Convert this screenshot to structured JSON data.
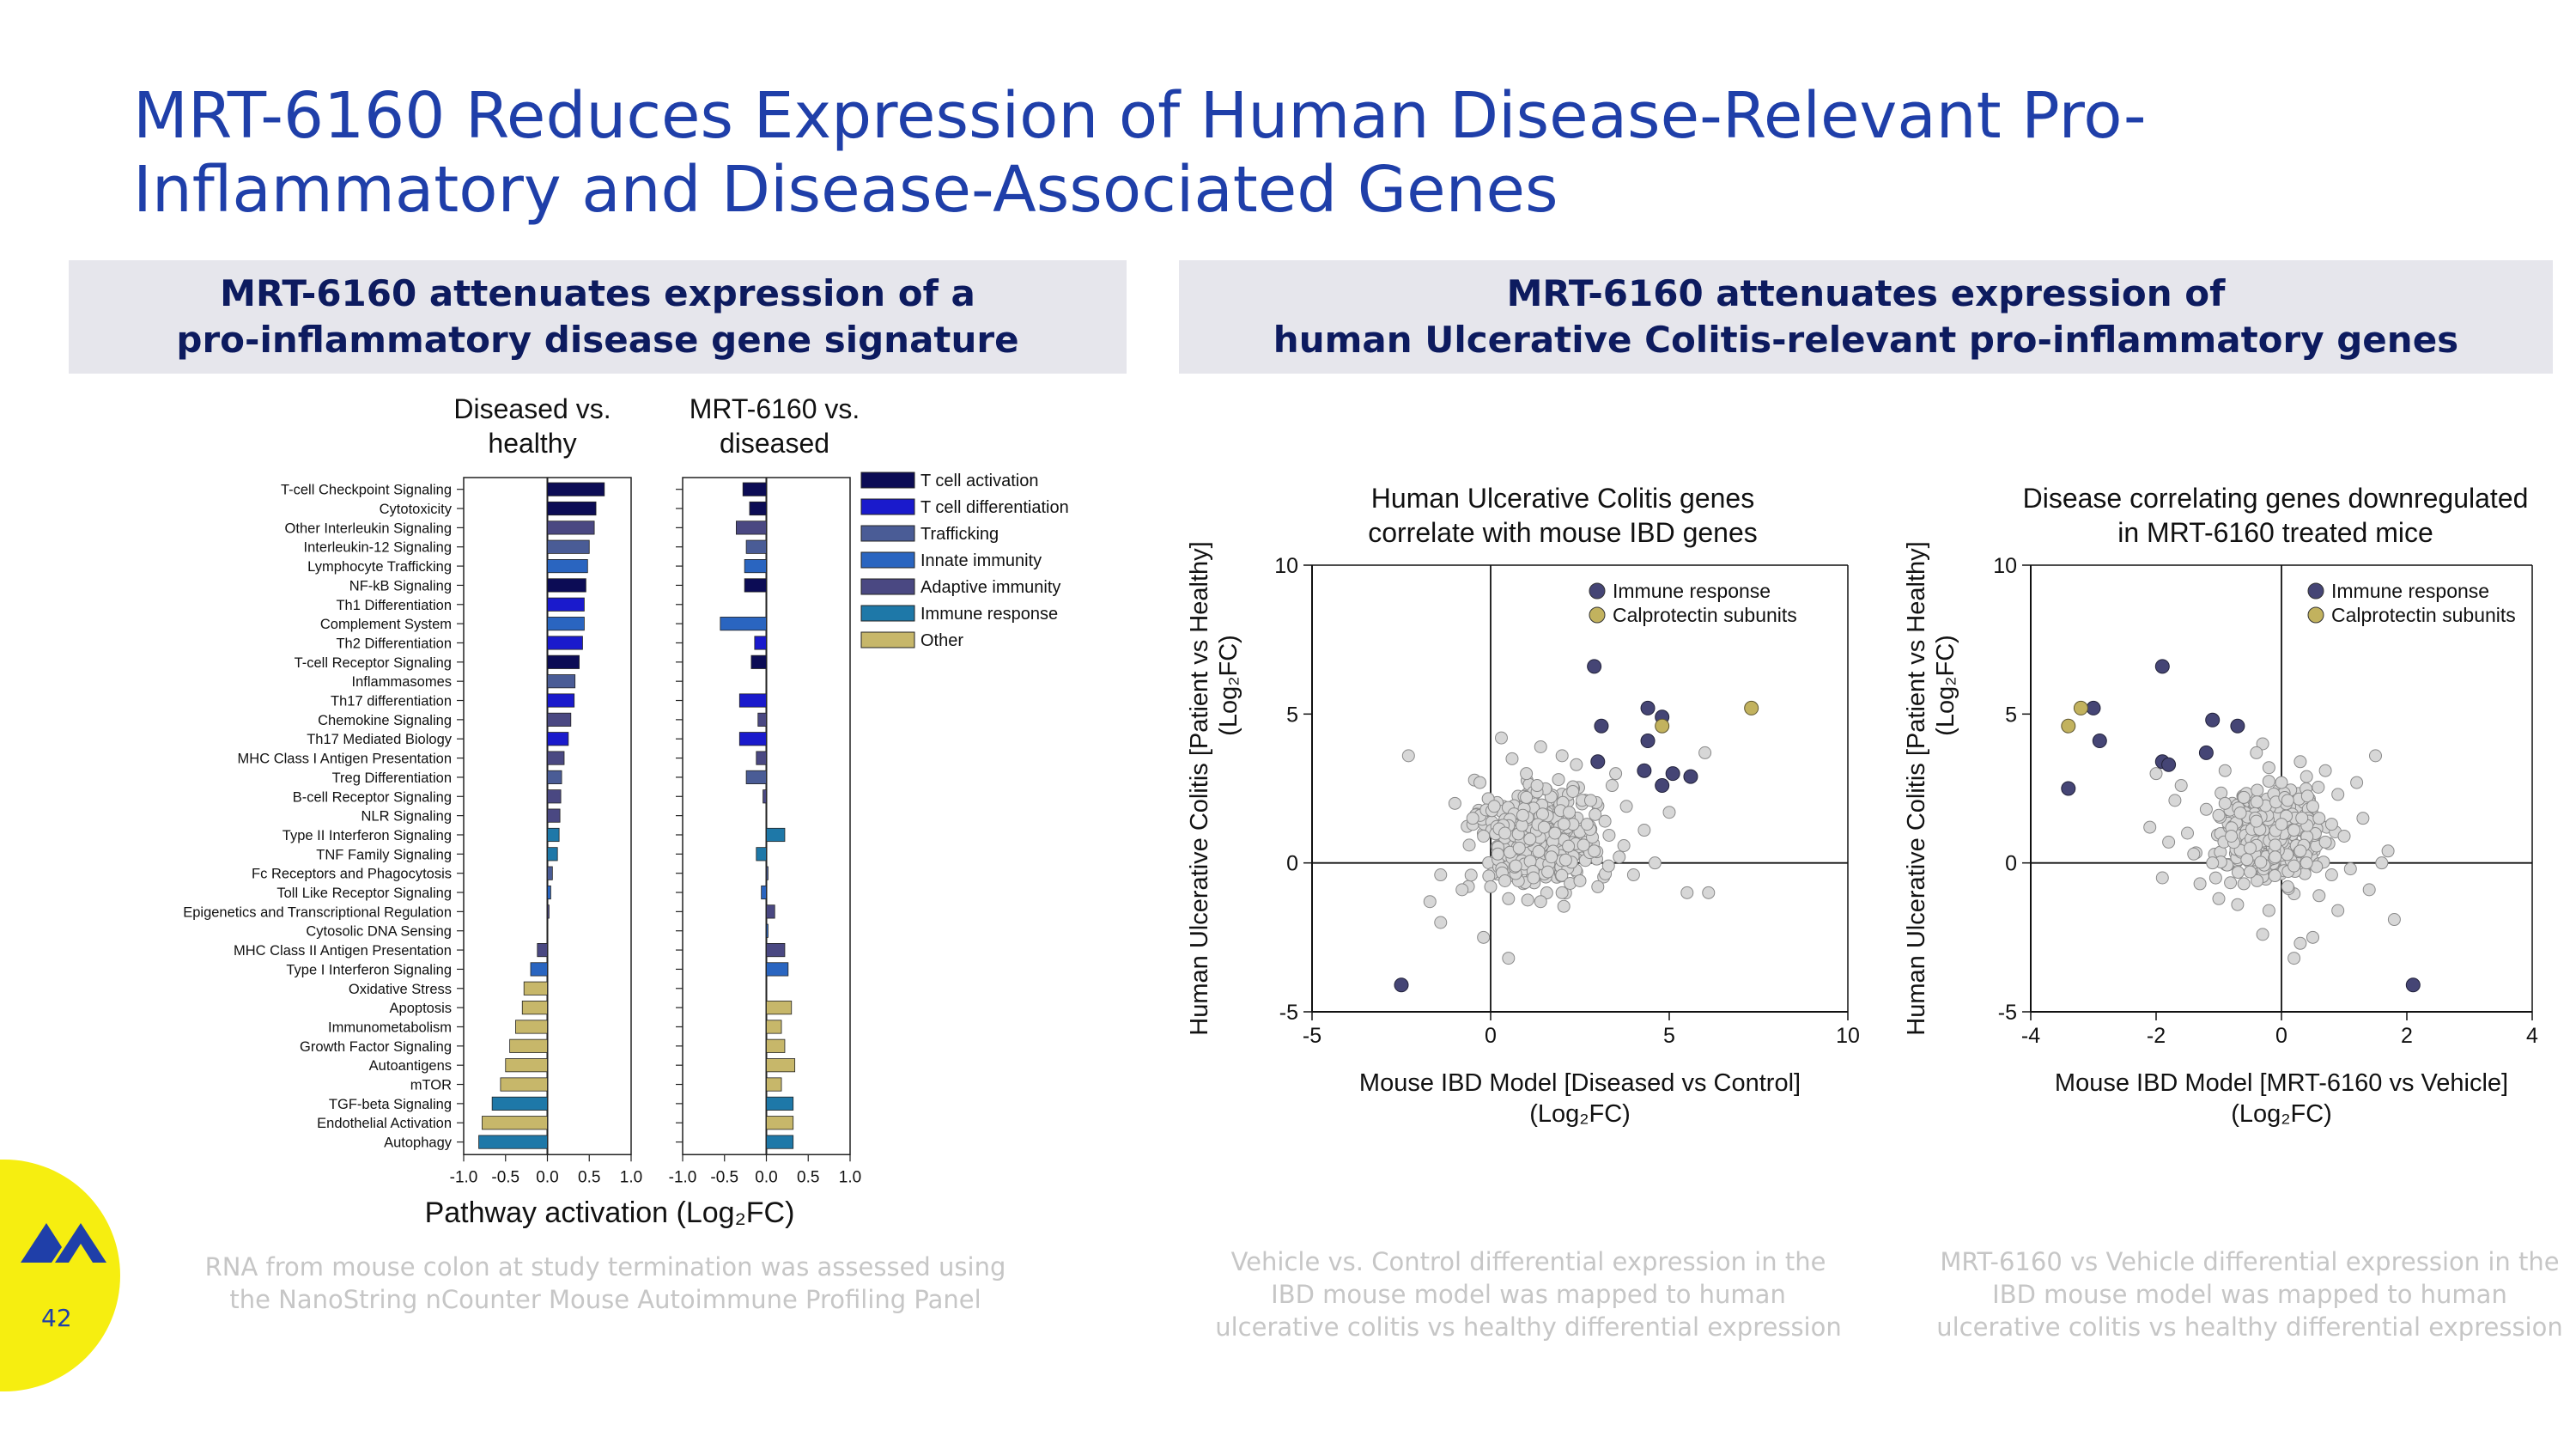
{
  "slide": {
    "title": "MRT-6160 Reduces Expression of Human Disease-Relevant Pro-Inflammatory and Disease-Associated Genes",
    "page_number": "42",
    "left_banner": [
      "MRT-6160 attenuates expression of a",
      "pro-inflammatory disease gene signature"
    ],
    "right_banner": [
      "MRT-6160 attenuates expression of",
      "human Ulcerative Colitis-relevant pro-inflammatory genes"
    ],
    "col_header_1": [
      "Diseased vs.",
      "healthy"
    ],
    "col_header_2": [
      "MRT-6160 vs.",
      "diseased"
    ],
    "bar_xlabel": "Pathway activation (Log₂FC)",
    "caption_left": [
      "RNA from mouse colon at study termination was assessed using",
      "the NanoString nCounter Mouse Autoimmune Profiling Panel"
    ],
    "caption_mid": [
      "Vehicle vs. Control differential expression in the",
      "IBD mouse model was mapped to human",
      "ulcerative colitis vs healthy differential expression"
    ],
    "caption_right": [
      "MRT-6160 vs Vehicle differential expression in the",
      "IBD mouse model was mapped to human",
      "ulcerative colitis vs healthy differential expression"
    ]
  },
  "chart_data": [
    {
      "type": "bar",
      "orientation": "horizontal",
      "panels": [
        "Diseased vs. healthy",
        "MRT-6160 vs. diseased"
      ],
      "categories": [
        "T-cell Checkpoint Signaling",
        "Cytotoxicity",
        "Other Interleukin Signaling",
        "Interleukin-12 Signaling",
        "Lymphocyte Trafficking",
        "NF-kB Signaling",
        "Th1 Differentiation",
        "Complement System",
        "Th2 Differentiation",
        "T-cell Receptor Signaling",
        "Inflammasomes",
        "Th17 differentiation",
        "Chemokine Signaling",
        "Th17 Mediated Biology",
        "MHC Class I Antigen Presentation",
        "Treg Differentiation",
        "B-cell Receptor Signaling",
        "NLR Signaling",
        "Type II Interferon Signaling",
        "TNF Family Signaling",
        "Fc Receptors and Phagocytosis",
        "Toll Like Receptor Signaling",
        "Epigenetics and Transcriptional Regulation",
        "Cytosolic DNA Sensing",
        "MHC Class II Antigen Presentation",
        "Type I Interferon Signaling",
        "Oxidative Stress",
        "Apoptosis",
        "Immunometabolism",
        "Growth Factor Signaling",
        "Autoantigens",
        "mTOR",
        "TGF-beta Signaling",
        "Endothelial Activation",
        "Autophagy"
      ],
      "groups": [
        "T cell activation",
        "T cell activation",
        "Adaptive immunity",
        "Trafficking",
        "Innate immunity",
        "T cell activation",
        "T cell differentiation",
        "Innate immunity",
        "T cell differentiation",
        "T cell activation",
        "Trafficking",
        "T cell differentiation",
        "Adaptive immunity",
        "T cell differentiation",
        "Adaptive immunity",
        "Trafficking",
        "Adaptive immunity",
        "Adaptive immunity",
        "Immune response",
        "Immune response",
        "Trafficking",
        "Innate immunity",
        "Adaptive immunity",
        "Innate immunity",
        "Adaptive immunity",
        "Innate immunity",
        "Other",
        "Other",
        "Other",
        "Other",
        "Other",
        "Other",
        "Immune response",
        "Other",
        "Immune response"
      ],
      "series": [
        {
          "name": "Diseased vs. healthy",
          "values": [
            0.68,
            0.58,
            0.56,
            0.5,
            0.48,
            0.46,
            0.44,
            0.44,
            0.42,
            0.38,
            0.33,
            0.32,
            0.28,
            0.25,
            0.2,
            0.17,
            0.16,
            0.15,
            0.14,
            0.12,
            0.06,
            0.04,
            0.02,
            0.0,
            -0.12,
            -0.2,
            -0.28,
            -0.3,
            -0.38,
            -0.45,
            -0.5,
            -0.56,
            -0.66,
            -0.78,
            -0.82
          ]
        },
        {
          "name": "MRT-6160 vs. diseased",
          "values": [
            -0.28,
            -0.2,
            -0.36,
            -0.24,
            -0.26,
            -0.26,
            0.0,
            -0.55,
            -0.14,
            -0.18,
            0.0,
            -0.32,
            -0.1,
            -0.32,
            -0.12,
            -0.24,
            -0.04,
            0.0,
            0.22,
            -0.12,
            0.02,
            -0.06,
            0.1,
            0.02,
            0.22,
            0.26,
            0.0,
            0.3,
            0.18,
            0.22,
            0.34,
            0.18,
            0.32,
            0.32,
            0.32
          ]
        }
      ],
      "xlim": [
        -1.0,
        1.0
      ],
      "xticks": [
        "-1.0",
        "-0.5",
        "0.0",
        "0.5",
        "1.0"
      ],
      "xlabel": "Pathway activation (Log₂FC)",
      "legend": [
        {
          "name": "T cell activation",
          "color": "#0c0c55"
        },
        {
          "name": "T cell differentiation",
          "color": "#1a1acc"
        },
        {
          "name": "Trafficking",
          "color": "#4a5c96"
        },
        {
          "name": "Innate immunity",
          "color": "#2a65c0"
        },
        {
          "name": "Adaptive immunity",
          "color": "#4a4882"
        },
        {
          "name": "Immune response",
          "color": "#1e78a8"
        },
        {
          "name": "Other",
          "color": "#c7b76a"
        }
      ],
      "legend_position": "top-right"
    },
    {
      "type": "scatter",
      "title": "Human Ulcerative Colitis genes correlate with mouse IBD genes",
      "title_lines": [
        "Human Ulcerative Colitis genes",
        "correlate with mouse IBD genes"
      ],
      "xlabel_lines": [
        "Mouse IBD Model [Diseased vs Control]",
        "(Log₂FC)"
      ],
      "ylabel_lines": [
        "Human Ulcerative Colitis [Patient vs Healthy]",
        "(Log₂FC)"
      ],
      "xlim": [
        -5,
        10
      ],
      "ylim": [
        -5,
        10
      ],
      "xticks": [
        -5,
        0,
        5,
        10
      ],
      "yticks": [
        -5,
        0,
        5,
        10
      ],
      "legend": [
        {
          "name": "Immune response",
          "color": "#454575"
        },
        {
          "name": "Calprotectin subunits",
          "color": "#c2b25e"
        }
      ],
      "legend_position": "top-right",
      "highlight_immune": [
        [
          -2.5,
          -4.1
        ],
        [
          2.9,
          6.6
        ],
        [
          3.1,
          4.6
        ],
        [
          3.0,
          3.4
        ],
        [
          4.4,
          5.2
        ],
        [
          4.4,
          4.1
        ],
        [
          4.3,
          3.1
        ],
        [
          4.8,
          2.6
        ],
        [
          5.6,
          2.9
        ],
        [
          5.1,
          3.0
        ],
        [
          4.8,
          4.9
        ]
      ],
      "highlight_calprotectin": [
        [
          4.8,
          4.6
        ],
        [
          7.3,
          5.2
        ]
      ],
      "background_genes_approx": "~450 grey points; majority cluster around x 0-3, y -1.5-3",
      "background_points_shown": [
        [
          -2.3,
          3.6
        ],
        [
          -1.7,
          -1.3
        ],
        [
          -1.4,
          -2.0
        ],
        [
          -1.4,
          -0.4
        ],
        [
          -1.0,
          2.0
        ],
        [
          -0.5,
          1.5
        ],
        [
          -0.3,
          2.7
        ],
        [
          -0.2,
          -2.5
        ],
        [
          0.0,
          -0.8
        ],
        [
          0.3,
          4.2
        ],
        [
          0.4,
          1.0
        ],
        [
          0.5,
          -1.2
        ],
        [
          0.5,
          -3.2
        ],
        [
          0.6,
          3.5
        ],
        [
          0.8,
          0.5
        ],
        [
          1.0,
          2.2
        ],
        [
          1.2,
          -0.5
        ],
        [
          1.4,
          3.9
        ],
        [
          1.5,
          1.2
        ],
        [
          1.7,
          0.2
        ],
        [
          1.9,
          2.8
        ],
        [
          2.0,
          -1.0
        ],
        [
          2.2,
          1.7
        ],
        [
          2.4,
          3.3
        ],
        [
          2.6,
          0.6
        ],
        [
          2.8,
          2.1
        ],
        [
          3.0,
          -0.8
        ],
        [
          3.2,
          1.4
        ],
        [
          3.4,
          2.6
        ],
        [
          3.6,
          0.2
        ],
        [
          3.8,
          1.9
        ],
        [
          4.0,
          -0.4
        ],
        [
          4.3,
          1.1
        ],
        [
          4.6,
          0.0
        ],
        [
          5.0,
          1.7
        ],
        [
          5.5,
          -1.0
        ],
        [
          6.0,
          3.7
        ],
        [
          6.1,
          -1.0
        ],
        [
          0.2,
          0.3
        ],
        [
          0.7,
          -0.1
        ],
        [
          0.9,
          1.6
        ],
        [
          1.1,
          0.8
        ],
        [
          1.3,
          2.6
        ],
        [
          1.6,
          -0.3
        ],
        [
          1.8,
          1.0
        ],
        [
          2.1,
          0.1
        ],
        [
          2.3,
          2.4
        ],
        [
          2.5,
          -0.6
        ],
        [
          2.7,
          1.3
        ],
        [
          2.9,
          0.4
        ],
        [
          -0.6,
          0.6
        ],
        [
          -0.8,
          -0.9
        ],
        [
          0.1,
          1.9
        ],
        [
          -0.2,
          0.9
        ],
        [
          0.4,
          -0.6
        ],
        [
          3.3,
          -0.1
        ],
        [
          3.5,
          3.0
        ],
        [
          1.0,
          3.0
        ],
        [
          1.4,
          -1.3
        ],
        [
          2.0,
          3.6
        ]
      ]
    },
    {
      "type": "scatter",
      "title": "Disease correlating genes downregulated in MRT-6160 treated mice",
      "title_lines": [
        "Disease correlating genes downregulated",
        "in MRT-6160 treated mice"
      ],
      "xlabel_lines": [
        "Mouse IBD Model [MRT-6160 vs Vehicle]",
        "(Log₂FC)"
      ],
      "ylabel_lines": [
        "Human Ulcerative Colitis [Patient vs Healthy]",
        "(Log₂FC)"
      ],
      "xlim": [
        -4,
        4
      ],
      "ylim": [
        -5,
        10
      ],
      "xticks": [
        -4,
        -2,
        0,
        2,
        4
      ],
      "yticks": [
        -5,
        0,
        5,
        10
      ],
      "legend": [
        {
          "name": "Immune response",
          "color": "#454575"
        },
        {
          "name": "Calprotectin subunits",
          "color": "#c2b25e"
        }
      ],
      "legend_position": "top-right",
      "highlight_immune": [
        [
          -1.9,
          6.6
        ],
        [
          -3.0,
          5.2
        ],
        [
          -1.1,
          4.8
        ],
        [
          -0.7,
          4.6
        ],
        [
          -1.2,
          3.7
        ],
        [
          -1.9,
          3.4
        ],
        [
          -1.8,
          3.3
        ],
        [
          -3.4,
          2.5
        ],
        [
          -2.9,
          4.1
        ],
        [
          2.1,
          -4.1
        ]
      ],
      "highlight_calprotectin": [
        [
          -3.2,
          5.2
        ],
        [
          -3.4,
          4.6
        ]
      ],
      "background_genes_approx": "~450 grey points; majority cluster around x -1.5 to 1, y -1.5-3",
      "background_points_shown": [
        [
          -2.1,
          1.2
        ],
        [
          -1.9,
          -0.5
        ],
        [
          -1.6,
          2.6
        ],
        [
          -1.4,
          0.3
        ],
        [
          -1.2,
          1.8
        ],
        [
          -1.0,
          -1.2
        ],
        [
          -0.9,
          3.1
        ],
        [
          -0.8,
          0.9
        ],
        [
          -0.6,
          2.2
        ],
        [
          -0.5,
          -0.3
        ],
        [
          -0.4,
          1.4
        ],
        [
          -0.3,
          4.0
        ],
        [
          -0.2,
          -1.6
        ],
        [
          -0.1,
          0.6
        ],
        [
          0.0,
          2.7
        ],
        [
          0.1,
          -0.8
        ],
        [
          0.2,
          1.1
        ],
        [
          0.3,
          3.4
        ],
        [
          0.4,
          0.0
        ],
        [
          0.5,
          1.9
        ],
        [
          0.6,
          -1.1
        ],
        [
          0.7,
          0.7
        ],
        [
          0.9,
          2.3
        ],
        [
          1.1,
          -0.2
        ],
        [
          1.3,
          1.5
        ],
        [
          1.5,
          3.6
        ],
        [
          1.7,
          0.4
        ],
        [
          1.8,
          -1.9
        ],
        [
          -1.3,
          -0.7
        ],
        [
          -0.7,
          -1.4
        ],
        [
          -0.3,
          -2.4
        ],
        [
          0.2,
          -3.2
        ],
        [
          0.3,
          -2.7
        ],
        [
          0.5,
          -2.5
        ],
        [
          0.9,
          -1.6
        ],
        [
          -2.0,
          3.0
        ],
        [
          -1.5,
          1.0
        ],
        [
          -1.1,
          0.0
        ],
        [
          -0.9,
          2.0
        ],
        [
          -0.5,
          0.5
        ],
        [
          0.0,
          1.3
        ],
        [
          0.4,
          2.9
        ],
        [
          0.6,
          1.5
        ],
        [
          0.8,
          -0.4
        ],
        [
          1.0,
          0.9
        ],
        [
          1.6,
          0.0
        ],
        [
          -1.8,
          0.7
        ],
        [
          -0.2,
          3.2
        ],
        [
          0.1,
          2.1
        ],
        [
          -0.6,
          -0.7
        ],
        [
          1.2,
          2.7
        ],
        [
          1.4,
          -0.9
        ],
        [
          -1.7,
          2.1
        ],
        [
          -0.4,
          3.7
        ],
        [
          0.7,
          3.1
        ],
        [
          0.8,
          1.3
        ],
        [
          -1.0,
          1.6
        ],
        [
          0.2,
          -0.1
        ],
        [
          -0.1,
          0.2
        ],
        [
          0.3,
          0.4
        ]
      ]
    }
  ]
}
